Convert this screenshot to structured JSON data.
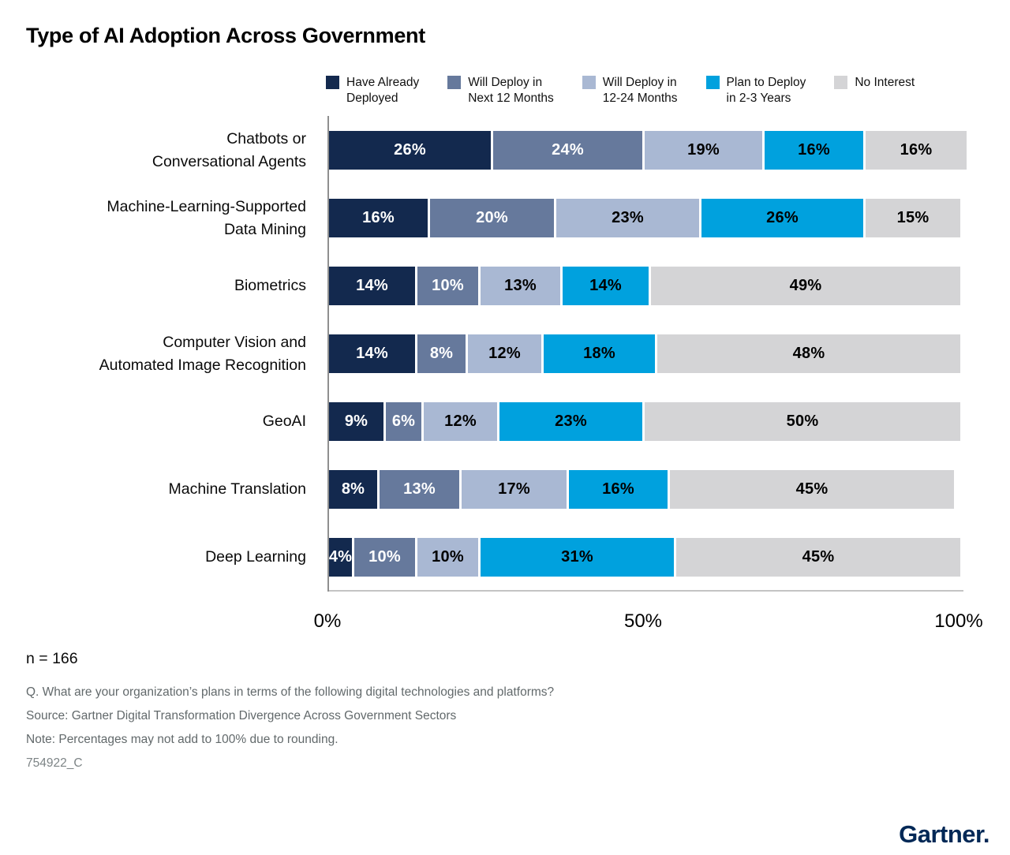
{
  "sample_size_label": "n = 166",
  "footnotes": {
    "question": "Q. What are your organization’s plans in terms of the following digital technologies and platforms?",
    "source": "Source: Gartner Digital Transformation Divergence Across Government Sectors",
    "note": "Note: Percentages may not add to 100% due to rounding.",
    "doc_id": "754922_C"
  },
  "logo_text": "Gartner.",
  "chart_data": {
    "type": "bar",
    "orientation": "horizontal-stacked",
    "title": "Type of AI Adoption Across Government",
    "xlabel": "",
    "ylabel": "",
    "xlim": [
      0,
      100
    ],
    "x_ticks": [
      "0%",
      "50%",
      "100%"
    ],
    "value_suffix": "%",
    "grid": false,
    "legend_position": "top",
    "categories": [
      [
        "Chatbots or",
        "Conversational Agents"
      ],
      [
        "Machine-Learning-Supported",
        "Data Mining"
      ],
      [
        "Biometrics"
      ],
      [
        "Computer Vision and",
        "Automated Image Recognition"
      ],
      [
        "GeoAI"
      ],
      [
        "Machine Translation"
      ],
      [
        "Deep Learning"
      ]
    ],
    "series": [
      {
        "name": "Have Already Deployed",
        "legend_lines": [
          "Have Already",
          "Deployed"
        ],
        "color": "#13294e",
        "text_color": "#ffffff",
        "values": [
          26,
          16,
          14,
          14,
          9,
          8,
          4
        ]
      },
      {
        "name": "Will Deploy in Next 12 Months",
        "legend_lines": [
          "Will Deploy in",
          "Next 12 Months"
        ],
        "color": "#66799c",
        "text_color": "#ffffff",
        "values": [
          24,
          20,
          10,
          8,
          6,
          13,
          10
        ]
      },
      {
        "name": "Will Deploy in 12-24 Months",
        "legend_lines": [
          "Will Deploy in",
          "12-24 Months"
        ],
        "color": "#a9b8d3",
        "text_color": "#000000",
        "values": [
          19,
          23,
          13,
          12,
          12,
          17,
          10
        ]
      },
      {
        "name": "Plan to Deploy in 2-3 Years",
        "legend_lines": [
          "Plan to Deploy",
          "in 2-3 Years"
        ],
        "color": "#00a1de",
        "text_color": "#000000",
        "values": [
          16,
          26,
          14,
          18,
          23,
          16,
          31
        ]
      },
      {
        "name": "No Interest",
        "legend_lines": [
          "No Interest"
        ],
        "color": "#d4d4d6",
        "text_color": "#000000",
        "values": [
          16,
          15,
          49,
          48,
          50,
          45,
          45
        ]
      }
    ]
  }
}
